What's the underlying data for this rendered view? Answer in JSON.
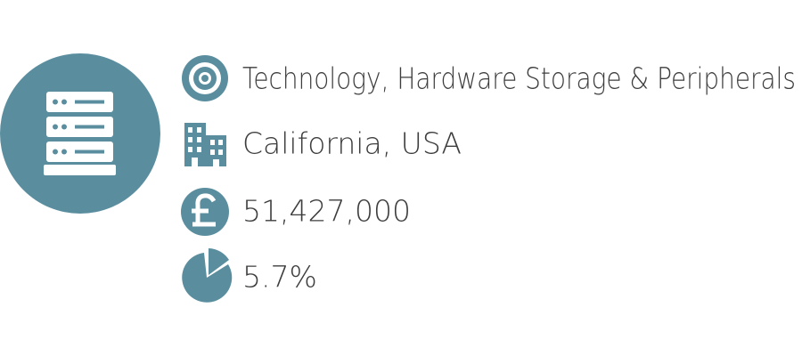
{
  "rows": [
    "Technology, Hardware Storage & Peripherals",
    "California, USA",
    "51,427,000",
    "5.7%"
  ]
}
